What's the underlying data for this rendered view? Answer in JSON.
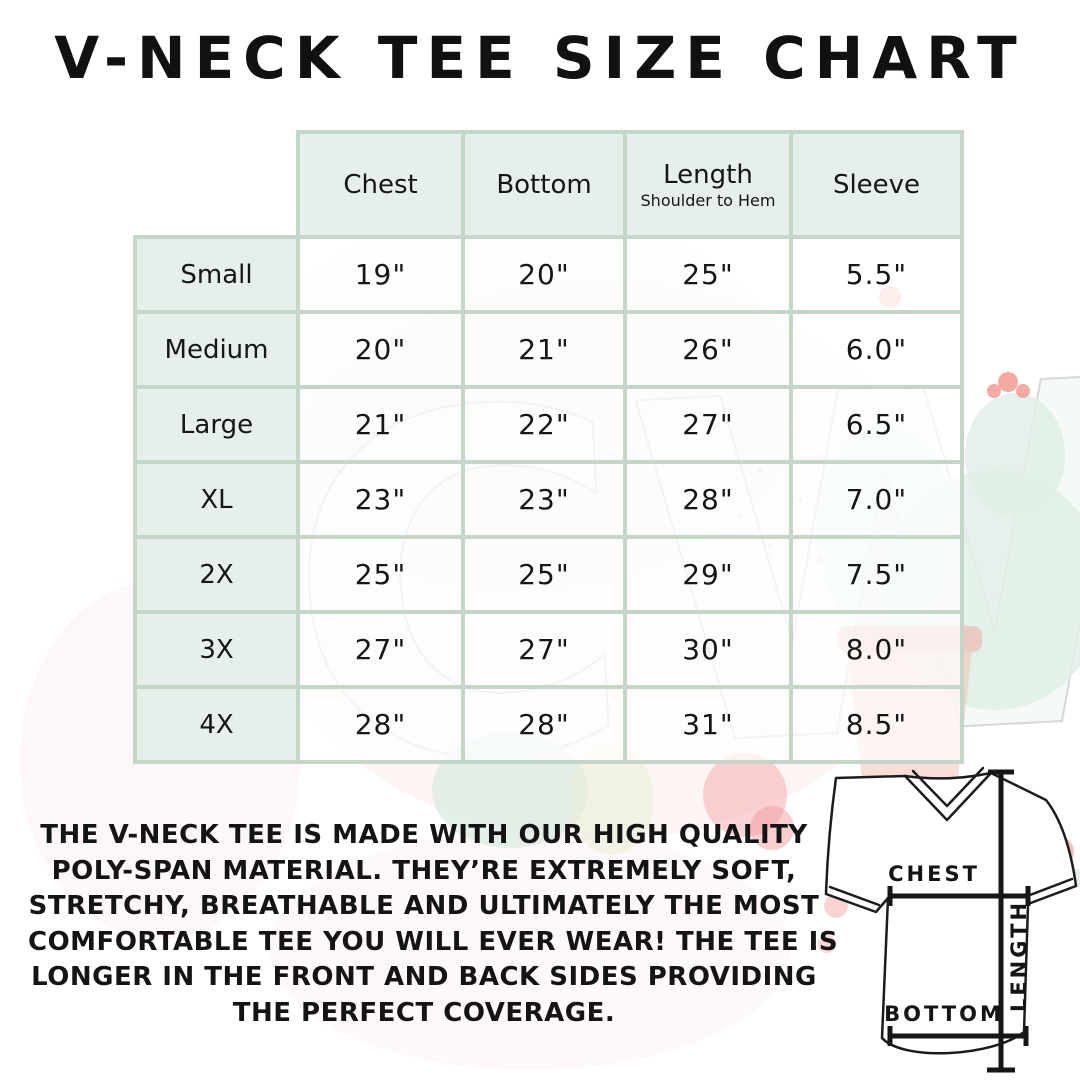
{
  "title": "V-NECK TEE SIZE CHART",
  "watermark_text": "CW",
  "chart_data": {
    "type": "table",
    "title": "V-NECK TEE SIZE CHART",
    "columns": [
      "Chest",
      "Bottom",
      "Length",
      "Sleeve"
    ],
    "length_subtitle": "Shoulder to Hem",
    "rows": [
      {
        "size": "Small",
        "chest": "19\"",
        "bottom": "20\"",
        "length": "25\"",
        "sleeve": "5.5\""
      },
      {
        "size": "Medium",
        "chest": "20\"",
        "bottom": "21\"",
        "length": "26\"",
        "sleeve": "6.0\""
      },
      {
        "size": "Large",
        "chest": "21\"",
        "bottom": "22\"",
        "length": "27\"",
        "sleeve": "6.5\""
      },
      {
        "size": "XL",
        "chest": "23\"",
        "bottom": "23\"",
        "length": "28\"",
        "sleeve": "7.0\""
      },
      {
        "size": "2X",
        "chest": "25\"",
        "bottom": "25\"",
        "length": "29\"",
        "sleeve": "7.5\""
      },
      {
        "size": "3X",
        "chest": "27\"",
        "bottom": "27\"",
        "length": "30\"",
        "sleeve": "8.0\""
      },
      {
        "size": "4X",
        "chest": "28\"",
        "bottom": "28\"",
        "length": "31\"",
        "sleeve": "8.5\""
      }
    ]
  },
  "description_lines": [
    "THE V-NECK TEE IS MADE WITH OUR HIGH QUALITY",
    "POLY-SPAN MATERIAL. THEY’RE EXTREMELY SOFT,",
    "STRETCHY, BREATHABLE AND ULTIMATELY THE MOST",
    "COMFORTABLE TEE YOU WILL EVER WEAR! THE TEE IS",
    "LONGER IN THE FRONT AND BACK SIDES PROVIDING",
    "THE PERFECT COVERAGE."
  ],
  "diagram": {
    "chest_label": "CHEST",
    "bottom_label": "BOTTOM",
    "length_label": "LENGTH"
  },
  "colors": {
    "table_border": "#c3d6c8",
    "header_cell_bg": "#e5eee9",
    "value_cell_bg": "#ffffff",
    "text": "#1a1a1a",
    "watermark_pink": "#fbecec",
    "watermark_mint": "#e0efe6",
    "watermark_coral": "#f2948c"
  }
}
